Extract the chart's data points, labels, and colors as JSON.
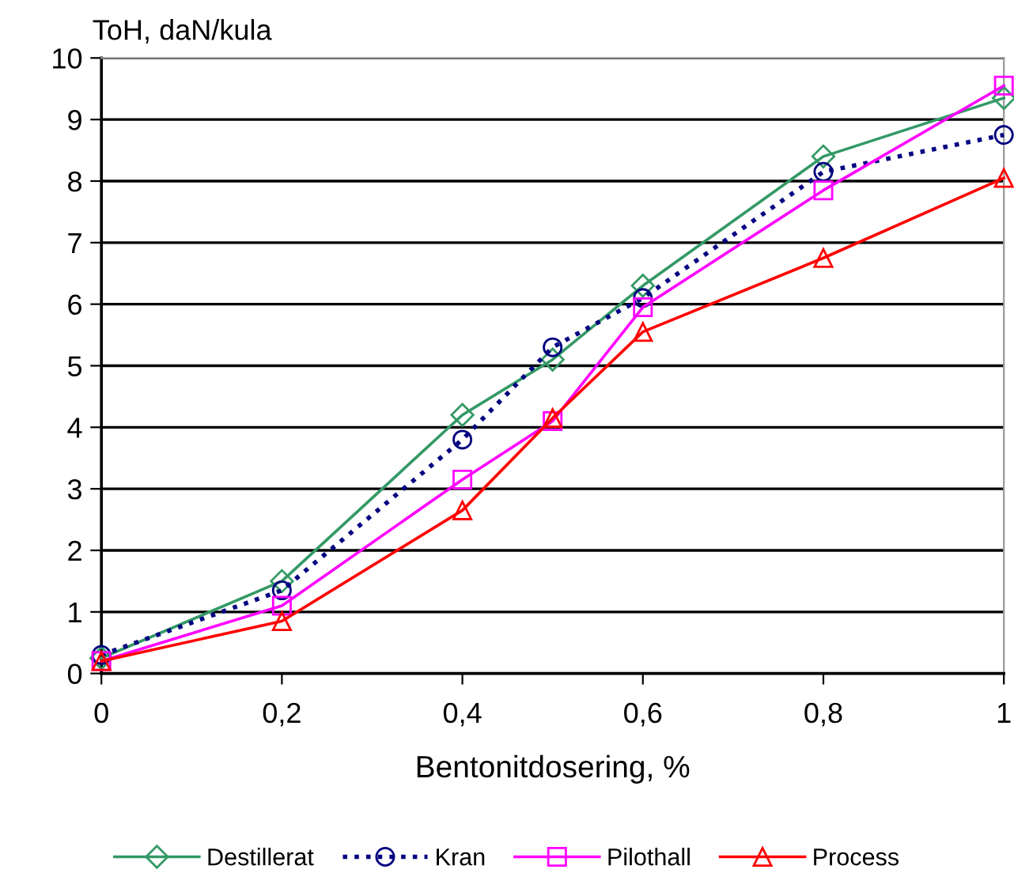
{
  "chart_data": {
    "type": "line",
    "ylabel": "ToH, daN/kula",
    "xlabel": "Bentonitdosering, %",
    "x": [
      0,
      0.2,
      0.4,
      0.5,
      0.6,
      0.8,
      1
    ],
    "series": [
      {
        "name": "Destillerat",
        "color": "#339966",
        "marker": "diamond",
        "line_style": "solid",
        "values": [
          0.25,
          1.5,
          4.2,
          5.1,
          6.3,
          8.4,
          9.35
        ]
      },
      {
        "name": "Kran",
        "color": "#000080",
        "marker": "circle",
        "line_style": "dotted",
        "values": [
          0.3,
          1.35,
          3.8,
          5.3,
          6.1,
          8.15,
          8.75
        ]
      },
      {
        "name": "Pilothall",
        "color": "#ff00ff",
        "marker": "square",
        "line_style": "solid",
        "values": [
          0.2,
          1.1,
          3.15,
          4.1,
          5.95,
          7.85,
          9.55
        ]
      },
      {
        "name": "Process",
        "color": "#ff0000",
        "marker": "triangle",
        "line_style": "solid",
        "values": [
          0.2,
          0.85,
          2.65,
          4.15,
          5.55,
          6.75,
          8.05
        ]
      }
    ],
    "xlim": [
      0,
      1
    ],
    "ylim": [
      0,
      10
    ],
    "xticks": [
      0,
      {
        "value": 0.2,
        "label": "0,2"
      },
      {
        "value": 0.4,
        "label": "0,4"
      },
      {
        "value": 0.6,
        "label": "0,6"
      },
      {
        "value": 0.8,
        "label": "0,8"
      },
      1
    ],
    "yticks": [
      0,
      1,
      2,
      3,
      4,
      5,
      6,
      7,
      8,
      9,
      10
    ],
    "grid": "y",
    "legend": "bottom"
  }
}
